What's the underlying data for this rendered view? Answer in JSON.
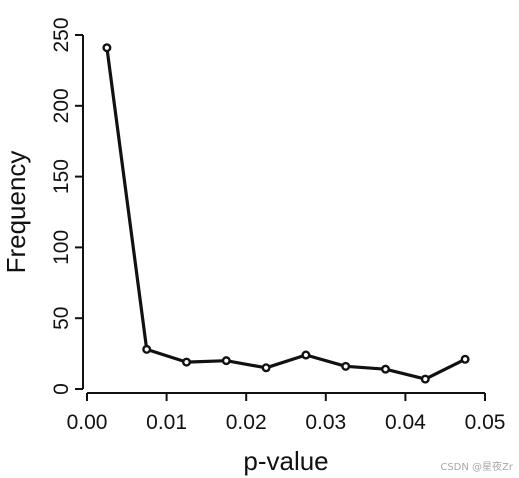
{
  "chart_data": {
    "type": "line",
    "title": "",
    "xlabel": "p-value",
    "ylabel": "Frequency",
    "x": [
      0.0025,
      0.0075,
      0.0125,
      0.0175,
      0.0225,
      0.0275,
      0.0325,
      0.0375,
      0.0425,
      0.0475
    ],
    "series": [
      {
        "values": [
          241,
          28,
          19,
          20,
          15,
          24,
          16,
          14,
          7,
          21
        ],
        "color": "#111111"
      }
    ],
    "xlim": [
      0,
      0.05
    ],
    "ylim": [
      0,
      250
    ],
    "x_ticks": [
      {
        "value": 0,
        "label": "0.00"
      },
      {
        "value": 0.01,
        "label": "0.01"
      },
      {
        "value": 0.02,
        "label": "0.02"
      },
      {
        "value": 0.03,
        "label": "0.03"
      },
      {
        "value": 0.04,
        "label": "0.04"
      },
      {
        "value": 0.05,
        "label": "0.05"
      }
    ],
    "y_ticks": [
      {
        "value": 0,
        "label": "0"
      },
      {
        "value": 50,
        "label": "50"
      },
      {
        "value": 100,
        "label": "100"
      },
      {
        "value": 150,
        "label": "150"
      },
      {
        "value": 200,
        "label": "200"
      },
      {
        "value": 250,
        "label": "250"
      }
    ],
    "grid": false,
    "legend": "none",
    "marker": "open-circle"
  },
  "watermark": "CSDN @星夜Zr"
}
